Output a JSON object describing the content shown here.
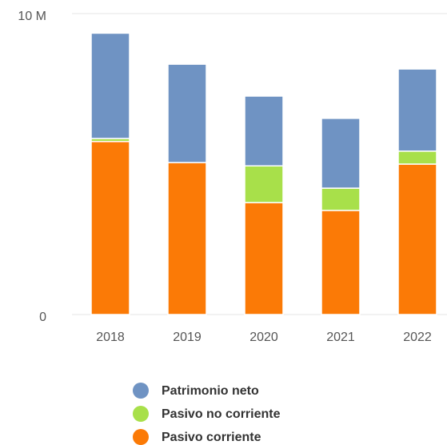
{
  "chart_data": {
    "type": "stacked_bar",
    "categories": [
      "2018",
      "2019",
      "2020",
      "2021",
      "2022"
    ],
    "series": [
      {
        "name": "Patrimonio neto",
        "color": "#6f93c3",
        "values": [
          3.5,
          3.27,
          2.32,
          2.32,
          2.73
        ]
      },
      {
        "name": "Pasivo no corriente",
        "color": "#a8e04a",
        "values": [
          0.1,
          0,
          1.22,
          0.74,
          0.43
        ]
      },
      {
        "name": "Pasivo corriente",
        "color": "#fb7a06",
        "values": [
          5.75,
          5.05,
          3.72,
          3.46,
          5.0
        ]
      }
    ],
    "ylim": [
      0,
      10
    ],
    "yticks": [
      0,
      {
        "value": 10,
        "label": "10 M"
      }
    ],
    "grid": true
  }
}
